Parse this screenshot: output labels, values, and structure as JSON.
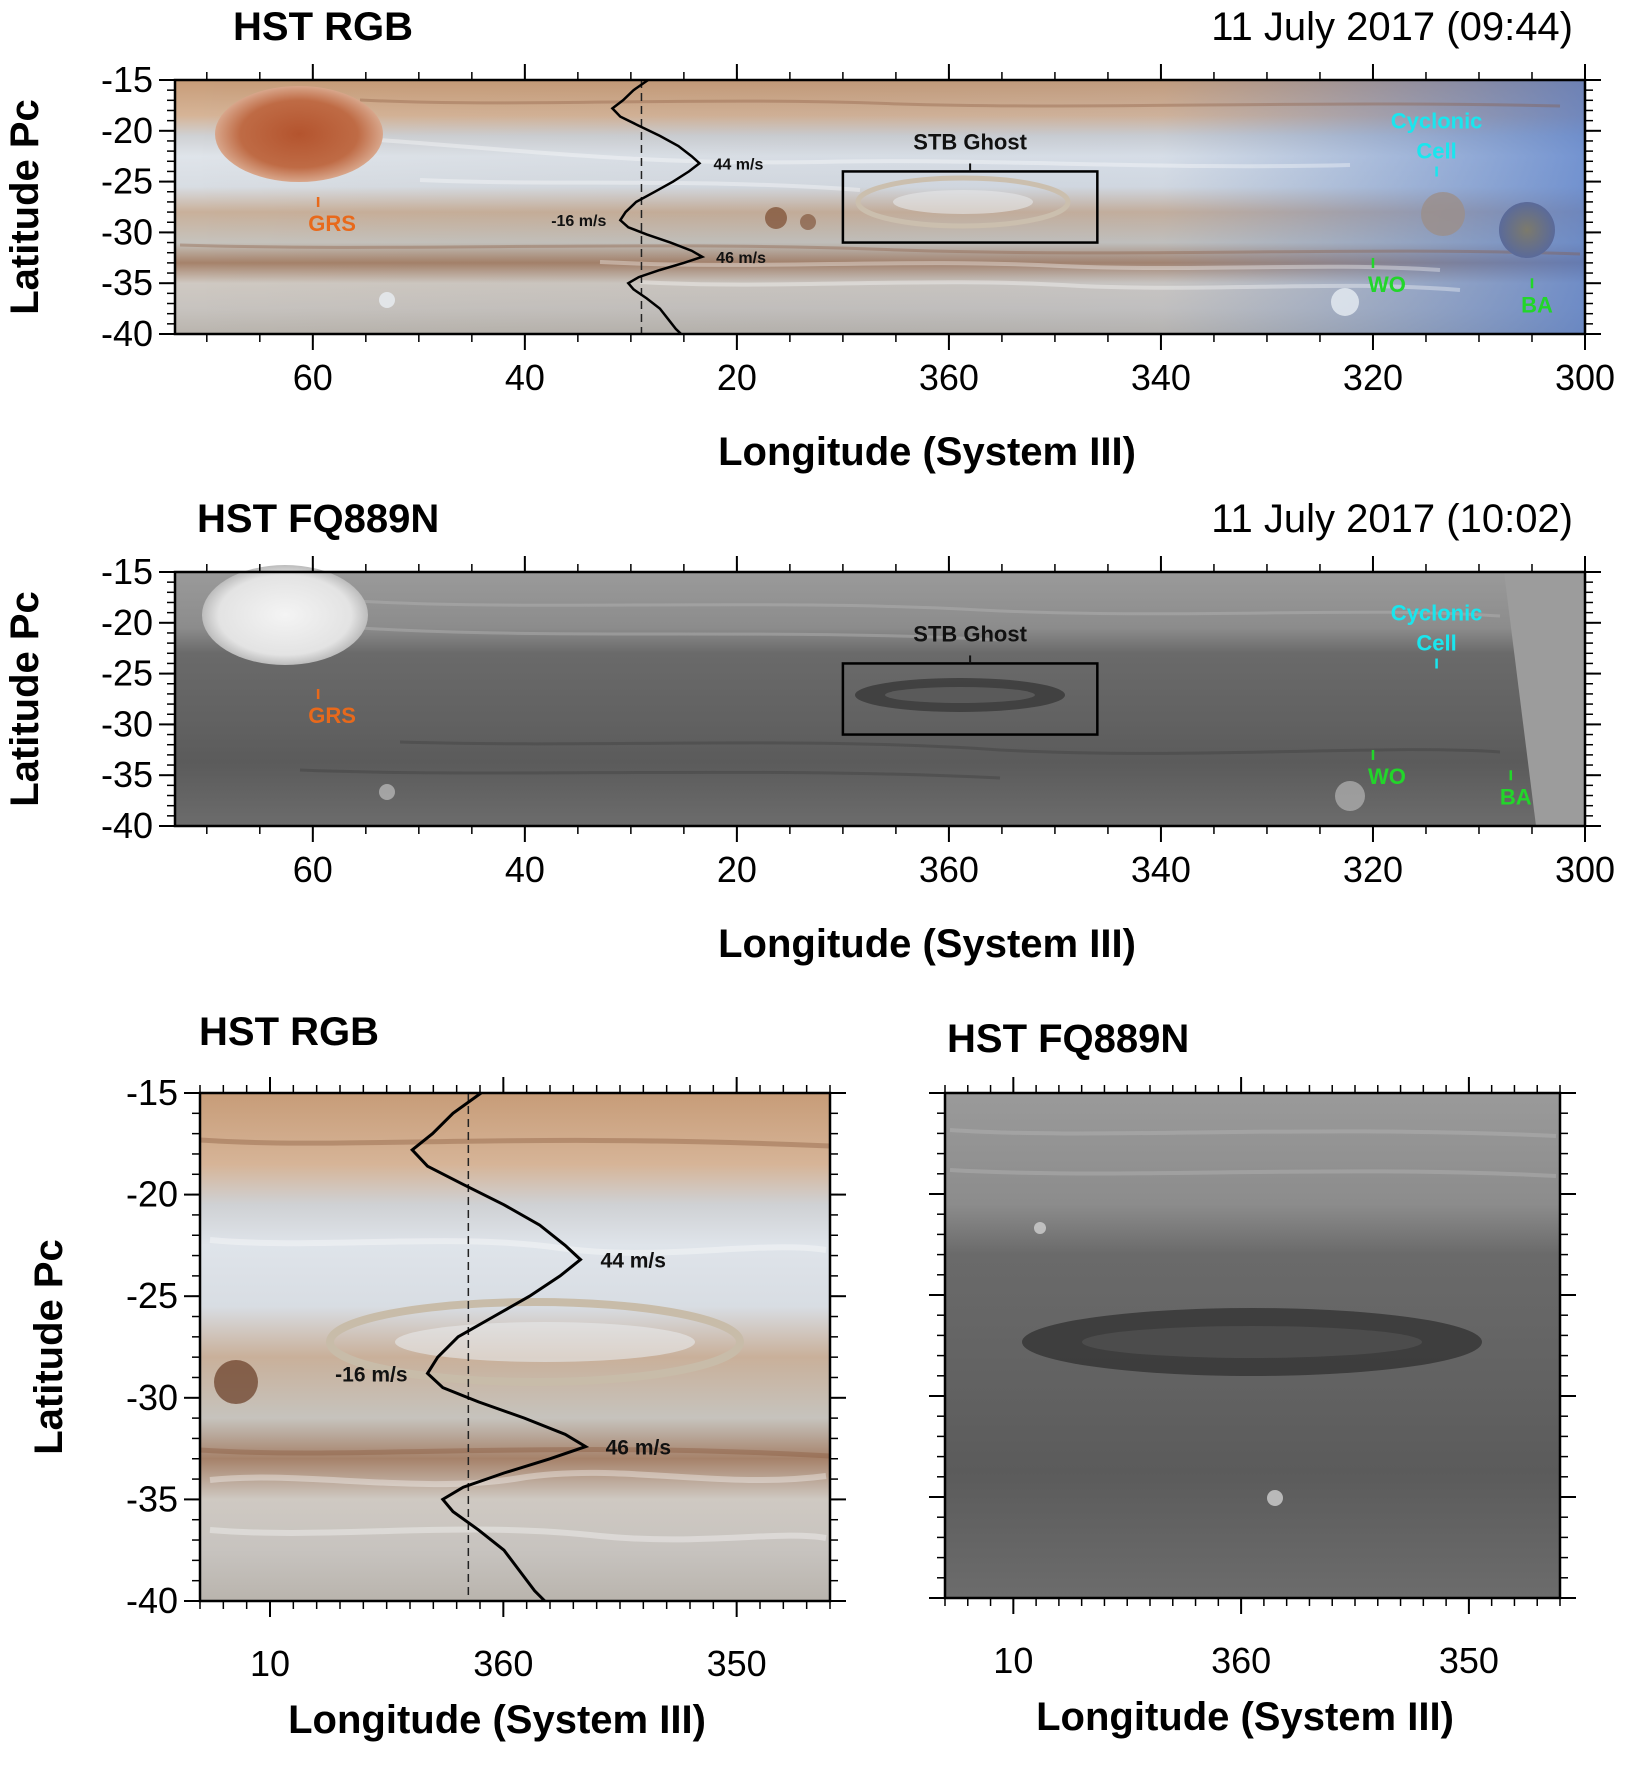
{
  "colors": {
    "grs_label": "#e8691b",
    "cyclonic_label": "#19e6ee",
    "spot_label": "#22d62a",
    "wind_profile": "#000000",
    "box": "#000000"
  },
  "chart_data": [
    {
      "type": "image-map",
      "panel": "top",
      "title": "HST RGB",
      "date": "11 July 2017  (09:44)",
      "xlabel": "Longitude (System III)",
      "ylabel": "Latitude Pc",
      "xlim": [
        73,
        300
      ],
      "ylim": [
        -40,
        -15
      ],
      "xticks": [
        {
          "value": 60,
          "label": "60"
        },
        {
          "value": 40,
          "label": "40"
        },
        {
          "value": 20,
          "label": "20"
        },
        {
          "value": 0,
          "label": "360"
        },
        {
          "value": -20,
          "label": "340"
        },
        {
          "value": -40,
          "label": "320"
        },
        {
          "value": -60,
          "label": "300"
        }
      ],
      "yticks": [
        {
          "value": -15,
          "label": "-15"
        },
        {
          "value": -20,
          "label": "-20"
        },
        {
          "value": -25,
          "label": "-25"
        },
        {
          "value": -30,
          "label": "-30"
        },
        {
          "value": -35,
          "label": "-35"
        },
        {
          "value": -40,
          "label": "-40"
        }
      ],
      "box": {
        "lon_from": 10,
        "lon_to": 346,
        "lat_from": -24,
        "lat_to": -31,
        "label": "STB Ghost"
      },
      "features": [
        {
          "name": "GRS",
          "lon": 59.5,
          "lat": -27.5,
          "color": "grs"
        },
        {
          "name": "Cyclonic\nCell",
          "lon": 314,
          "lat": -24.5,
          "color": "cyclonic"
        },
        {
          "name": "WO",
          "lon": 320,
          "lat": -33.5,
          "color": "spot"
        },
        {
          "name": "BA",
          "lon": 305,
          "lat": -35.5,
          "color": "spot"
        }
      ],
      "wind_profile": {
        "zero_lon": 29,
        "annotations": [
          {
            "text": "44 m/s",
            "lat": -23.2
          },
          {
            "text": "-16 m/s",
            "lat": -28.8
          },
          {
            "text": "46 m/s",
            "lat": -32.4
          }
        ]
      }
    },
    {
      "type": "image-map",
      "panel": "middle",
      "title": "HST FQ889N",
      "date": "11 July 2017  (10:02)",
      "xlabel": "Longitude (System III)",
      "ylabel": "Latitude Pc",
      "xlim": [
        73,
        300
      ],
      "ylim": [
        -40,
        -15
      ],
      "xticks": [
        {
          "value": 60,
          "label": "60"
        },
        {
          "value": 40,
          "label": "40"
        },
        {
          "value": 20,
          "label": "20"
        },
        {
          "value": 0,
          "label": "360"
        },
        {
          "value": -20,
          "label": "340"
        },
        {
          "value": -40,
          "label": "320"
        },
        {
          "value": -60,
          "label": "300"
        }
      ],
      "yticks": [
        {
          "value": -15,
          "label": "-15"
        },
        {
          "value": -20,
          "label": "-20"
        },
        {
          "value": -25,
          "label": "-25"
        },
        {
          "value": -30,
          "label": "-30"
        },
        {
          "value": -35,
          "label": "-35"
        },
        {
          "value": -40,
          "label": "-40"
        }
      ],
      "box": {
        "lon_from": 10,
        "lon_to": 346,
        "lat_from": -24,
        "lat_to": -31,
        "label": "STB Ghost"
      },
      "features": [
        {
          "name": "GRS",
          "lon": 59.5,
          "lat": -27.5,
          "color": "grs"
        },
        {
          "name": "Cyclonic\nCell",
          "lon": 314,
          "lat": -24.5,
          "color": "cyclonic"
        },
        {
          "name": "WO",
          "lon": 320,
          "lat": -33.5,
          "color": "spot"
        },
        {
          "name": "BA",
          "lon": 307,
          "lat": -35.5,
          "color": "spot"
        }
      ]
    },
    {
      "type": "image-map",
      "panel": "bottom-left",
      "title": "HST RGB",
      "xlabel": "Longitude (System III)",
      "ylabel": "Latitude Pc",
      "xlim": [
        13,
        346
      ],
      "ylim": [
        -40,
        -15
      ],
      "xticks": [
        {
          "value": 10,
          "label": "10"
        },
        {
          "value": 0,
          "label": "360"
        },
        {
          "value": -10,
          "label": "350"
        }
      ],
      "yticks": [
        {
          "value": -15,
          "label": "-15"
        },
        {
          "value": -20,
          "label": "-20"
        },
        {
          "value": -25,
          "label": "-25"
        },
        {
          "value": -30,
          "label": "-30"
        },
        {
          "value": -35,
          "label": "-35"
        },
        {
          "value": -40,
          "label": "-40"
        }
      ],
      "wind_profile": {
        "zero_lon": 1.5,
        "annotations": [
          {
            "text": "44 m/s",
            "lat": -23.2
          },
          {
            "text": "-16 m/s",
            "lat": -28.8
          },
          {
            "text": "46 m/s",
            "lat": -32.4
          }
        ]
      }
    },
    {
      "type": "image-map",
      "panel": "bottom-right",
      "title": "HST FQ889N",
      "xlabel": "Longitude (System III)",
      "ylabel": "",
      "xlim": [
        13,
        346
      ],
      "ylim": [
        -40,
        -15
      ],
      "xticks": [
        {
          "value": 10,
          "label": "10"
        },
        {
          "value": 0,
          "label": "360"
        },
        {
          "value": -10,
          "label": "350"
        }
      ]
    }
  ]
}
